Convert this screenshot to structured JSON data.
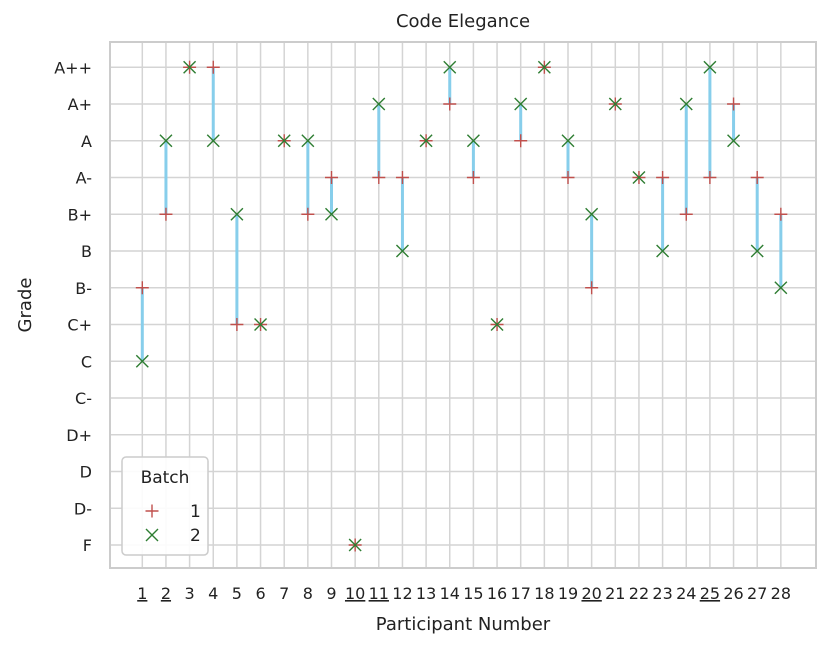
{
  "chart_data": {
    "type": "scatter",
    "title": "Code Elegance",
    "xlabel": "Participant Number",
    "ylabel": "Grade",
    "grade_ticks": [
      "F",
      "D-",
      "D",
      "D+",
      "C-",
      "C",
      "C+",
      "B-",
      "B",
      "B+",
      "A-",
      "A",
      "A+",
      "A++"
    ],
    "participants": [
      {
        "n": "1",
        "underlined": true
      },
      {
        "n": "2",
        "underlined": true
      },
      {
        "n": "3",
        "underlined": false
      },
      {
        "n": "4",
        "underlined": false
      },
      {
        "n": "5",
        "underlined": false
      },
      {
        "n": "6",
        "underlined": false
      },
      {
        "n": "7",
        "underlined": false
      },
      {
        "n": "8",
        "underlined": false
      },
      {
        "n": "9",
        "underlined": false
      },
      {
        "n": "10",
        "underlined": true
      },
      {
        "n": "11",
        "underlined": true
      },
      {
        "n": "12",
        "underlined": false
      },
      {
        "n": "13",
        "underlined": false
      },
      {
        "n": "14",
        "underlined": false
      },
      {
        "n": "15",
        "underlined": false
      },
      {
        "n": "16",
        "underlined": false
      },
      {
        "n": "17",
        "underlined": false
      },
      {
        "n": "18",
        "underlined": false
      },
      {
        "n": "19",
        "underlined": false
      },
      {
        "n": "20",
        "underlined": true
      },
      {
        "n": "21",
        "underlined": false
      },
      {
        "n": "22",
        "underlined": false
      },
      {
        "n": "23",
        "underlined": false
      },
      {
        "n": "24",
        "underlined": false
      },
      {
        "n": "25",
        "underlined": true
      },
      {
        "n": "26",
        "underlined": false
      },
      {
        "n": "27",
        "underlined": false
      },
      {
        "n": "28",
        "underlined": false
      }
    ],
    "series": [
      {
        "name": "1",
        "marker": "plus",
        "color": "#c0504d",
        "values": [
          "B-",
          "B+",
          "A++",
          "A++",
          "C+",
          "C+",
          "A",
          "B+",
          "A-",
          "F",
          "A-",
          "A-",
          "A",
          "A+",
          "A-",
          "C+",
          "A",
          "A++",
          "A-",
          "B-",
          "A+",
          "A-",
          "A-",
          "B+",
          "A-",
          "A+",
          "A-",
          "B+"
        ]
      },
      {
        "name": "2",
        "marker": "x",
        "color": "#2e7d32",
        "values": [
          "C",
          "A",
          "A++",
          "A",
          "B+",
          "C+",
          "A",
          "A",
          "B+",
          "F",
          "A+",
          "B",
          "A",
          "A++",
          "A",
          "C+",
          "A+",
          "A++",
          "A",
          "B+",
          "A+",
          "A-",
          "B",
          "A+",
          "A++",
          "A",
          "B",
          "B-"
        ]
      }
    ],
    "connector_color": "#87ceeb",
    "grid": true,
    "legend": {
      "title": "Batch",
      "placement": "lower-left"
    }
  }
}
